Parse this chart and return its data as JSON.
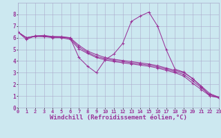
{
  "background_color": "#cce8f0",
  "line_color": "#993399",
  "grid_color": "#aaaacc",
  "xlabel": "Windchill (Refroidissement éolien,°C)",
  "xlabel_fontsize": 6.5,
  "xtick_fontsize": 5,
  "ytick_fontsize": 5.5,
  "xlim": [
    0,
    23
  ],
  "ylim": [
    0,
    9
  ],
  "series": [
    {
      "x": [
        0,
        1,
        2,
        3,
        4,
        5,
        6,
        7,
        8,
        9,
        10,
        11,
        12,
        13,
        14,
        15,
        16,
        17,
        18,
        19,
        20,
        21,
        22,
        23
      ],
      "y": [
        6.5,
        5.85,
        6.15,
        6.1,
        6.1,
        6.05,
        6.0,
        4.3,
        3.55,
        3.0,
        4.1,
        4.6,
        5.5,
        7.4,
        7.85,
        8.2,
        7.0,
        4.95,
        3.3,
        3.05,
        2.5,
        1.8,
        1.0,
        0.9
      ]
    },
    {
      "x": [
        0,
        1,
        2,
        3,
        4,
        5,
        6,
        7,
        8,
        9,
        10,
        11,
        12,
        13,
        14,
        15,
        16,
        17,
        18,
        19,
        20,
        21,
        22,
        23
      ],
      "y": [
        6.5,
        6.0,
        6.15,
        6.2,
        6.1,
        6.1,
        6.0,
        5.35,
        4.85,
        4.55,
        4.3,
        4.15,
        4.05,
        3.95,
        3.85,
        3.75,
        3.6,
        3.4,
        3.2,
        3.0,
        2.5,
        1.85,
        1.2,
        0.9
      ]
    },
    {
      "x": [
        0,
        1,
        2,
        3,
        4,
        5,
        6,
        7,
        8,
        9,
        10,
        11,
        12,
        13,
        14,
        15,
        16,
        17,
        18,
        19,
        20,
        21,
        22,
        23
      ],
      "y": [
        6.5,
        6.0,
        6.15,
        6.15,
        6.05,
        6.05,
        5.95,
        5.2,
        4.75,
        4.4,
        4.2,
        4.05,
        3.95,
        3.85,
        3.75,
        3.65,
        3.5,
        3.3,
        3.1,
        2.85,
        2.3,
        1.7,
        1.1,
        0.9
      ]
    },
    {
      "x": [
        0,
        1,
        2,
        3,
        4,
        5,
        6,
        7,
        8,
        9,
        10,
        11,
        12,
        13,
        14,
        15,
        16,
        17,
        18,
        19,
        20,
        21,
        22,
        23
      ],
      "y": [
        6.5,
        6.0,
        6.1,
        6.1,
        6.0,
        6.0,
        5.85,
        5.05,
        4.65,
        4.3,
        4.1,
        3.95,
        3.85,
        3.75,
        3.65,
        3.55,
        3.4,
        3.2,
        3.0,
        2.7,
        2.1,
        1.55,
        1.0,
        0.85
      ]
    }
  ]
}
